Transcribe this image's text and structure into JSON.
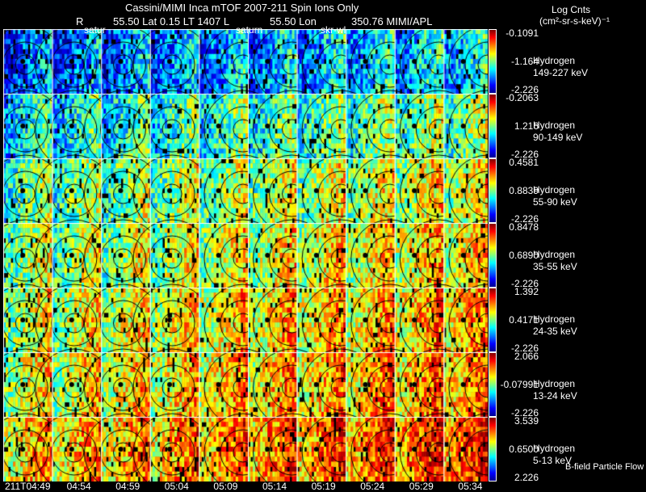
{
  "header": {
    "title": "Cassini/MIMI Inca mTOF  2007-211   Spin   Ions Only",
    "r": "R",
    "lat": "55.50 Lat 0.15 LT 1407 L",
    "lon": "55.50 Lon",
    "lon_val": "350.76  MIMI/APL",
    "marker_saturn1": "satur",
    "marker_saturn2": "saturn",
    "marker_skr": "skr-wl"
  },
  "units": {
    "line1": "Log Cnts",
    "line2": "(cm²-sr-s-keV)⁻¹"
  },
  "footer_note": "B-field Particle Flow",
  "chart_data": {
    "type": "heatmap",
    "title": "Cassini/MIMI Inca mTOF 2007-211 Spin Ions Only",
    "times": [
      "211T04:49",
      "04:54",
      "04:59",
      "05:04",
      "05:09",
      "05:14",
      "05:19",
      "05:24",
      "05:29",
      "05:34"
    ],
    "rows": [
      {
        "species": "Hydrogen",
        "energy": "149-227 keV",
        "max": "-0.1091",
        "mid": "-1.164",
        "min": "-2.226",
        "level": 0.3
      },
      {
        "species": "Hydrogen",
        "energy": "90-149 keV",
        "max": "-0.2063",
        "mid": "1.216",
        "min": "-2.226",
        "level": 0.45
      },
      {
        "species": "Hydrogen",
        "energy": "55-90 keV",
        "max": "0.4581",
        "mid": "0.8839",
        "min": "-2.226",
        "level": 0.55
      },
      {
        "species": "Hydrogen",
        "energy": "35-55 keV",
        "max": "0.8478",
        "mid": "0.6890",
        "min": "-2.226",
        "level": 0.6
      },
      {
        "species": "Hydrogen",
        "energy": "24-35 keV",
        "max": "1.392",
        "mid": "0.4171",
        "min": "-2.226",
        "level": 0.65
      },
      {
        "species": "Hydrogen",
        "energy": "13-24 keV",
        "max": "2.066",
        "mid": "-0.07991",
        "min": "-2.226",
        "level": 0.68
      },
      {
        "species": "Hydrogen",
        "energy": "5-13 keV",
        "max": "3.539",
        "mid": "0.6500",
        "min": "2.226",
        "level": 0.75
      }
    ]
  }
}
